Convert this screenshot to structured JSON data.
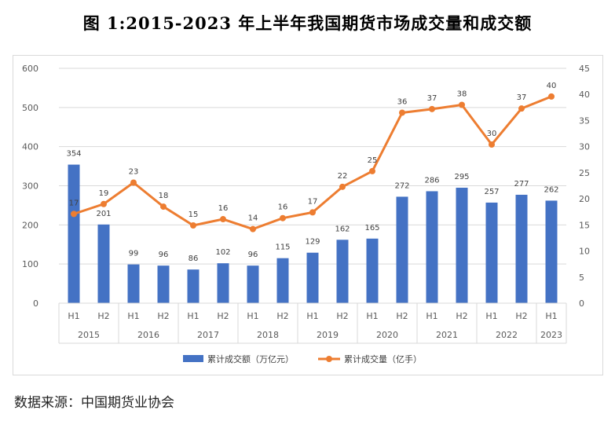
{
  "title": "图 1:2015-2023 年上半年我国期货市场成交量和成交额",
  "source": "数据来源：中国期货业协会",
  "colors": {
    "bar": "#4472C4",
    "line": "#ED7D31",
    "grid": "#d9d9d9"
  },
  "chart_data": {
    "type": "bar+line",
    "categories": [
      "H1",
      "H2",
      "H1",
      "H2",
      "H1",
      "H2",
      "H1",
      "H2",
      "H1",
      "H2",
      "H1",
      "H2",
      "H1",
      "H2",
      "H1",
      "H2",
      "H1"
    ],
    "years": [
      {
        "label": "2015",
        "count": 2
      },
      {
        "label": "2016",
        "count": 2
      },
      {
        "label": "2017",
        "count": 2
      },
      {
        "label": "2018",
        "count": 2
      },
      {
        "label": "2019",
        "count": 2
      },
      {
        "label": "2020",
        "count": 2
      },
      {
        "label": "2021",
        "count": 2
      },
      {
        "label": "2022",
        "count": 2
      },
      {
        "label": "2023",
        "count": 1
      }
    ],
    "series": [
      {
        "name": "累计成交额（万亿元）",
        "type": "bar",
        "axis": "left",
        "values": [
          354,
          201,
          99,
          96,
          86,
          102,
          96,
          115,
          129,
          162,
          165,
          272,
          286,
          295,
          257,
          277,
          262
        ]
      },
      {
        "name": "累计成交量（亿手）",
        "type": "line",
        "axis": "right",
        "values": [
          17,
          19,
          23,
          18,
          15,
          16,
          14,
          16,
          17,
          22,
          25,
          36,
          37,
          38,
          30,
          37,
          40
        ]
      }
    ],
    "left_axis": {
      "min": 0,
      "max": 600,
      "step": 100,
      "ticks": [
        "0",
        "100",
        "200",
        "300",
        "400",
        "500",
        "600"
      ]
    },
    "right_axis": {
      "min": 0,
      "max": 45,
      "step": 5,
      "ticks": [
        "0",
        "5",
        "10",
        "15",
        "20",
        "25",
        "30",
        "35",
        "40",
        "45"
      ]
    },
    "line_plot_values": [
      17.1,
      19.0,
      23.1,
      18.5,
      14.9,
      16.1,
      14.2,
      16.3,
      17.4,
      22.3,
      25.3,
      36.5,
      37.2,
      38.0,
      30.4,
      37.3,
      39.6
    ],
    "legend_position": "bottom"
  }
}
